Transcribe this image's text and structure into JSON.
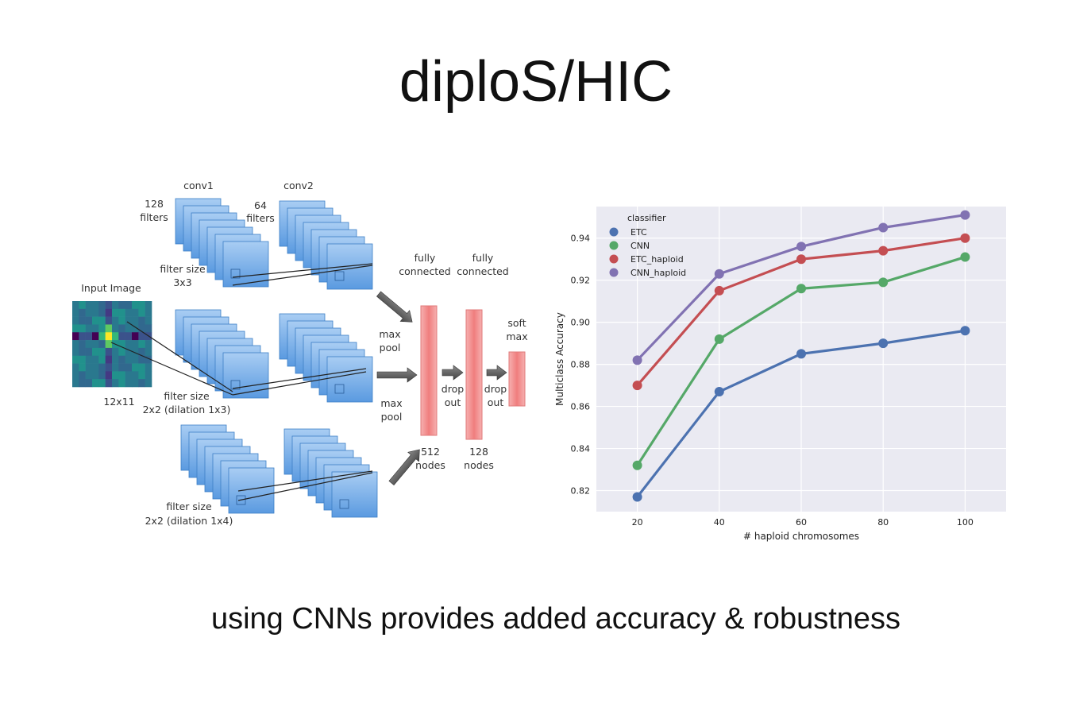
{
  "title": "diploS/HIC",
  "caption": "using CNNs provides added accuracy & robustness",
  "diagram": {
    "input_label": "Input Image",
    "input_size": "12x11",
    "conv1": "conv1",
    "conv2": "conv2",
    "filters1": [
      "128",
      "filters"
    ],
    "filters2": [
      "64",
      "filters"
    ],
    "filter_top": [
      "filter size",
      "3x3"
    ],
    "filter_mid": [
      "filter size",
      "2x2 (dilation 1x3)"
    ],
    "filter_bot": [
      "filter size",
      "2x2 (dilation 1x4)"
    ],
    "maxpool1": [
      "max",
      "pool"
    ],
    "maxpool2": [
      "max",
      "pool"
    ],
    "fc1": [
      "fully",
      "connected"
    ],
    "fc2": [
      "fully",
      "connected"
    ],
    "dropout1": [
      "drop",
      "out"
    ],
    "dropout2": [
      "drop",
      "out"
    ],
    "softmax": [
      "soft",
      "max"
    ],
    "nodes1": [
      "512",
      "nodes"
    ],
    "nodes2": [
      "128",
      "nodes"
    ],
    "colors": {
      "conv": "#6fa8e8",
      "dense": "#f08a8a"
    }
  },
  "chart_data": {
    "type": "line",
    "x": [
      20,
      40,
      60,
      80,
      100
    ],
    "xlabel": "# haploid chromosomes",
    "ylabel": "Multiclass Accuracy",
    "ylim": [
      0.81,
      0.955
    ],
    "yticks": [
      0.82,
      0.84,
      0.86,
      0.88,
      0.9,
      0.92,
      0.94
    ],
    "ytick_labels": [
      "0.82",
      "0.84",
      "0.86",
      "0.88",
      "0.90",
      "0.92",
      "0.94"
    ],
    "xtick_labels": [
      "20",
      "40",
      "60",
      "80",
      "100"
    ],
    "legend_title": "classifier",
    "legend_position": "top-left",
    "grid": true,
    "series": [
      {
        "name": "ETC",
        "color": "#4c72b0",
        "values": [
          0.817,
          0.867,
          0.885,
          0.89,
          0.896
        ]
      },
      {
        "name": "CNN",
        "color": "#55a868",
        "values": [
          0.832,
          0.892,
          0.916,
          0.919,
          0.931
        ]
      },
      {
        "name": "ETC_haploid",
        "color": "#c44e52",
        "values": [
          0.87,
          0.915,
          0.93,
          0.934,
          0.94
        ]
      },
      {
        "name": "CNN_haploid",
        "color": "#8172b2",
        "values": [
          0.882,
          0.923,
          0.936,
          0.945,
          0.951
        ]
      }
    ]
  }
}
